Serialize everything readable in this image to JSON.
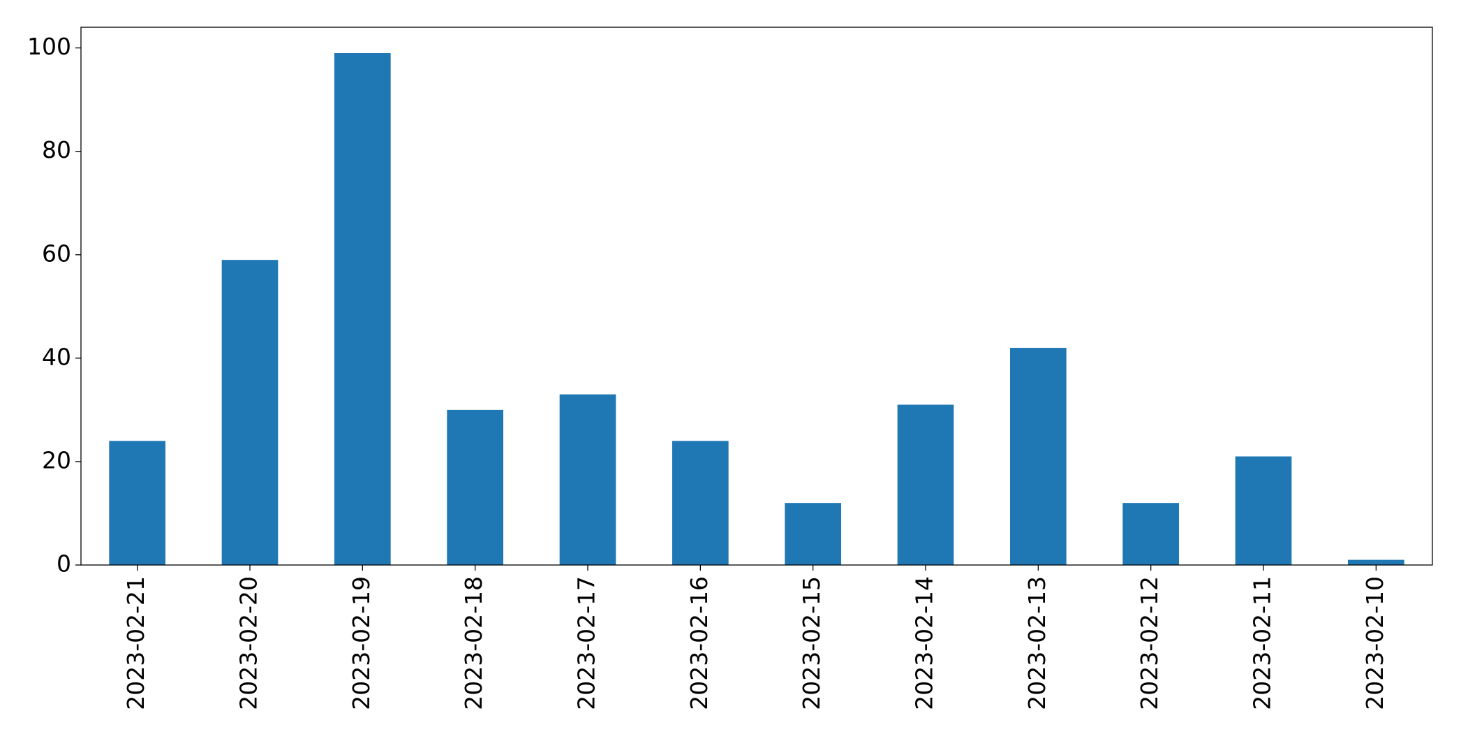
{
  "chart_data": {
    "type": "bar",
    "categories": [
      "2023-02-21",
      "2023-02-20",
      "2023-02-19",
      "2023-02-18",
      "2023-02-17",
      "2023-02-16",
      "2023-02-15",
      "2023-02-14",
      "2023-02-13",
      "2023-02-12",
      "2023-02-11",
      "2023-02-10"
    ],
    "values": [
      24,
      59,
      99,
      30,
      33,
      24,
      12,
      31,
      42,
      12,
      21,
      1
    ],
    "color": "#1f77b4",
    "ylim": [
      0,
      104
    ],
    "yticks": [
      0,
      20,
      40,
      60,
      80,
      100
    ],
    "grid": false
  }
}
